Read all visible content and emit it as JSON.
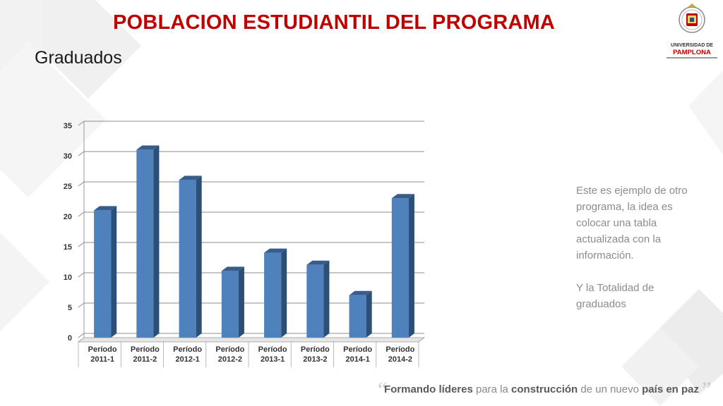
{
  "header": {
    "title": "POBLACION ESTUDIANTIL DEL PROGRAMA",
    "subtitle": "Graduados"
  },
  "logo": {
    "line1": "UNIVERSIDAD DE",
    "line2": "PAMPLONA",
    "icon": "university-crest-icon"
  },
  "note": {
    "paragraph1": "Este es ejemplo de otro programa, la idea es colocar una tabla actualizada con la información.",
    "paragraph2": "Y la Totalidad de graduados"
  },
  "footer": {
    "part1": "Formando ",
    "part2": "líderes",
    "part3": " para la ",
    "part4": "construcción",
    "part5": " de un nuevo ",
    "part6": "país en paz"
  },
  "colors": {
    "title": "#c00000",
    "bar_front": "#4f81bd",
    "bar_side": "#2c4f78",
    "bar_top": "#385d8a"
  },
  "chart_data": {
    "type": "bar",
    "categories": [
      "Período 2011-1",
      "Período 2011-2",
      "Período 2012-1",
      "Período 2012-2",
      "Período 2013-1",
      "Período 2013-2",
      "Período 2014-1",
      "Período 2014-2"
    ],
    "category_lines": [
      [
        "Período",
        "2011-1"
      ],
      [
        "Período",
        "2011-2"
      ],
      [
        "Período",
        "2012-1"
      ],
      [
        "Período",
        "2012-2"
      ],
      [
        "Período",
        "2013-1"
      ],
      [
        "Período",
        "2013-2"
      ],
      [
        "Período",
        "2014-1"
      ],
      [
        "Período",
        "2014-2"
      ]
    ],
    "values": [
      21,
      31,
      26,
      11,
      14,
      12,
      7,
      23
    ],
    "yticks": [
      0,
      5,
      10,
      15,
      20,
      25,
      30,
      35
    ],
    "ylim": [
      0,
      35
    ],
    "grid": true,
    "legend": "none",
    "style": "3d-column"
  }
}
